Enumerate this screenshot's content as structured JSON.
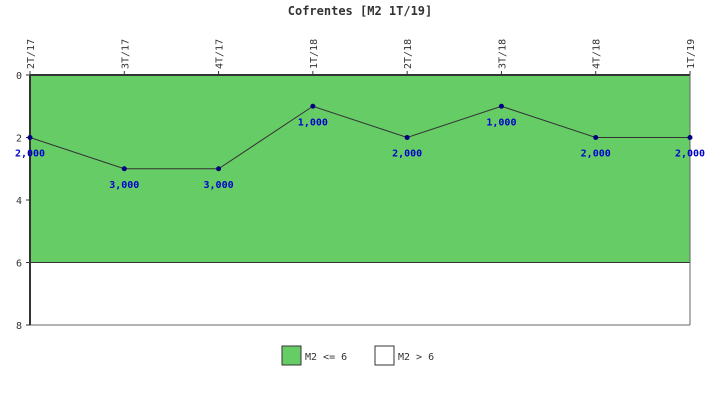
{
  "chart_data": {
    "type": "line",
    "title": "Cofrentes [M2 1T/19]",
    "xlabel": "",
    "ylabel": "",
    "categories": [
      "2T/17",
      "3T/17",
      "4T/17",
      "1T/18",
      "2T/18",
      "3T/18",
      "4T/18",
      "1T/19"
    ],
    "series": [
      {
        "values": [
          2,
          3,
          3,
          1,
          2,
          1,
          2,
          2
        ],
        "data_labels": [
          "2,000",
          "3,000",
          "3,000",
          "1,000",
          "2,000",
          "1,000",
          "2,000",
          "2,000"
        ]
      }
    ],
    "ylim": [
      0,
      8
    ],
    "y_inverted": true,
    "y_ticks": [
      "0",
      "2",
      "4",
      "6",
      "8"
    ],
    "x_axis_position": "top",
    "grid": false,
    "bands": [
      {
        "label": "M2 <= 6",
        "from": 0,
        "to": 6,
        "color": "#66cc66"
      },
      {
        "label": "M2 > 6",
        "from": 6,
        "to": 8,
        "color": "#ffffff"
      }
    ],
    "legend": {
      "position": "bottom",
      "items": [
        {
          "label": "M2 <= 6",
          "color": "#66cc66"
        },
        {
          "label": "M2 > 6",
          "color": "#ffffff"
        }
      ]
    },
    "colors": {
      "line": "#333333",
      "marker": "#000080",
      "data_label": "#0000cc",
      "axis": "#333333"
    }
  }
}
